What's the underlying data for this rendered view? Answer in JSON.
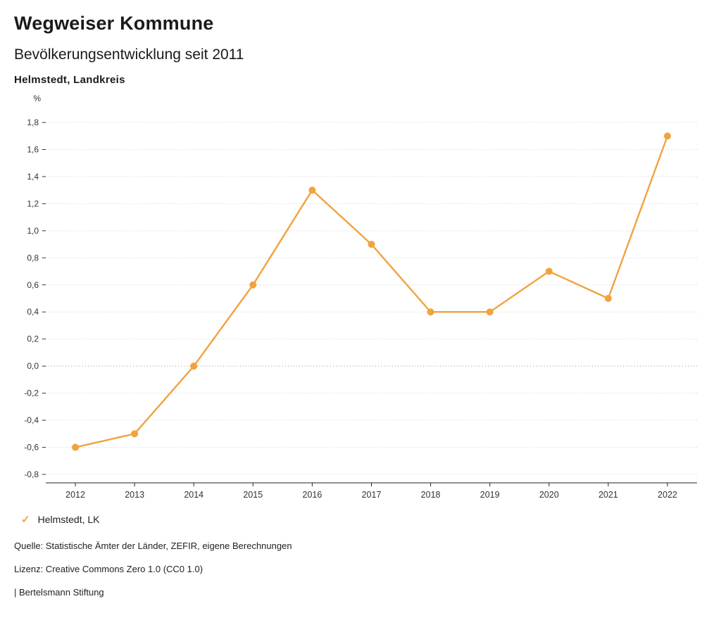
{
  "header": {
    "brand": "Wegweiser Kommune",
    "title": "Bevölkerungsentwicklung seit 2011",
    "location": "Helmstedt,  Landkreis"
  },
  "legend": {
    "check_icon": "✓",
    "label": "Helmstedt, LK"
  },
  "footer": {
    "source": "Quelle: Statistische Ämter der Länder, ZEFIR, eigene Berechnungen",
    "license": "Lizenz: Creative Commons Zero 1.0 (CC0 1.0)",
    "attribution": "| Bertelsmann Stiftung"
  },
  "chart_data": {
    "type": "line",
    "title": "Bevölkerungsentwicklung seit 2011",
    "subtitle": "Helmstedt, Landkreis",
    "unit_label": "%",
    "categories": [
      "2012",
      "2013",
      "2014",
      "2015",
      "2016",
      "2017",
      "2018",
      "2019",
      "2020",
      "2021",
      "2022"
    ],
    "series": [
      {
        "name": "Helmstedt, LK",
        "color": "#f0a33f",
        "values": [
          -0.6,
          -0.5,
          0.0,
          0.6,
          1.3,
          0.9,
          0.4,
          0.4,
          0.7,
          0.5,
          1.7
        ]
      }
    ],
    "ylim": [
      -0.8,
      1.8
    ],
    "ytick_step": 0.2,
    "decimal_separator": ",",
    "grid": true,
    "legend_position": "bottom"
  }
}
